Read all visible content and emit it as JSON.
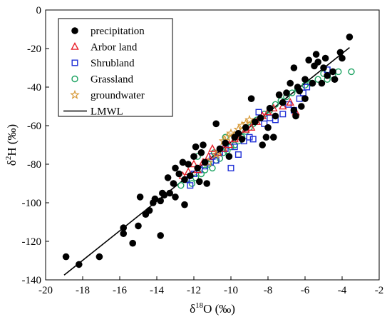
{
  "chart_data": {
    "type": "scatter",
    "title": "",
    "xlabel": "δ18O (‰)",
    "xlabel_parts": {
      "base": "δ",
      "sup": "18",
      "rest": "O (‰)"
    },
    "ylabel": "δ2H (‰)",
    "ylabel_parts": {
      "base": "δ",
      "sup": "2",
      "rest": "H (‰)"
    },
    "xlim": [
      -20,
      -2
    ],
    "ylim": [
      -140,
      0
    ],
    "xticks": [
      -20,
      -18,
      -16,
      -14,
      -12,
      -10,
      -8,
      -6,
      -4,
      -2
    ],
    "xtick_labels": [
      "-20",
      "-18",
      "-16",
      "-14",
      "-12",
      "-10",
      "-8",
      "-6",
      "-4",
      "-2"
    ],
    "yticks": [
      -140,
      -120,
      -100,
      -80,
      -60,
      -40,
      -20,
      0
    ],
    "ytick_labels": [
      "-140",
      "-120",
      "-100",
      "-80",
      "-60",
      "-40",
      "-20",
      "0"
    ],
    "grid": false,
    "legend_position": "top-left",
    "series": [
      {
        "name": "precipitation",
        "marker": "filled-circle",
        "color": "#000000",
        "points": [
          [
            -18.9,
            -128
          ],
          [
            -18.2,
            -132
          ],
          [
            -17.1,
            -128
          ],
          [
            -15.8,
            -113
          ],
          [
            -15.8,
            -116
          ],
          [
            -15.3,
            -121
          ],
          [
            -15.0,
            -112
          ],
          [
            -14.9,
            -97
          ],
          [
            -14.6,
            -106
          ],
          [
            -14.4,
            -104
          ],
          [
            -14.2,
            -100
          ],
          [
            -14.1,
            -98
          ],
          [
            -13.8,
            -117
          ],
          [
            -13.8,
            -99
          ],
          [
            -13.7,
            -95
          ],
          [
            -13.6,
            -96
          ],
          [
            -13.4,
            -87
          ],
          [
            -13.3,
            -95
          ],
          [
            -13.1,
            -90
          ],
          [
            -13.0,
            -82
          ],
          [
            -13.0,
            -97
          ],
          [
            -12.8,
            -85
          ],
          [
            -12.6,
            -79
          ],
          [
            -12.5,
            -88
          ],
          [
            -12.5,
            -101
          ],
          [
            -12.3,
            -80
          ],
          [
            -12.2,
            -86
          ],
          [
            -12.0,
            -76
          ],
          [
            -11.9,
            -71
          ],
          [
            -11.8,
            -82
          ],
          [
            -11.7,
            -89
          ],
          [
            -11.6,
            -74
          ],
          [
            -11.5,
            -70
          ],
          [
            -11.4,
            -79
          ],
          [
            -11.3,
            -90
          ],
          [
            -10.8,
            -59
          ],
          [
            -10.6,
            -72
          ],
          [
            -10.3,
            -69
          ],
          [
            -10.1,
            -76
          ],
          [
            -9.8,
            -66
          ],
          [
            -9.6,
            -64
          ],
          [
            -9.4,
            -67
          ],
          [
            -9.2,
            -61
          ],
          [
            -8.9,
            -46
          ],
          [
            -8.7,
            -58
          ],
          [
            -8.4,
            -56
          ],
          [
            -8.3,
            -70
          ],
          [
            -8.1,
            -66
          ],
          [
            -8.0,
            -61
          ],
          [
            -7.9,
            -51
          ],
          [
            -7.7,
            -66
          ],
          [
            -7.6,
            -55
          ],
          [
            -7.4,
            -44
          ],
          [
            -7.2,
            -48
          ],
          [
            -7.0,
            -43
          ],
          [
            -6.8,
            -38
          ],
          [
            -6.6,
            -52
          ],
          [
            -6.5,
            -55
          ],
          [
            -6.4,
            -40
          ],
          [
            -6.3,
            -42
          ],
          [
            -6.2,
            -50
          ],
          [
            -6.0,
            -46
          ],
          [
            -6.0,
            -36
          ],
          [
            -5.8,
            -26
          ],
          [
            -5.6,
            -38
          ],
          [
            -5.5,
            -29
          ],
          [
            -5.4,
            -23
          ],
          [
            -5.3,
            -27
          ],
          [
            -5.1,
            -38
          ],
          [
            -5.0,
            -30
          ],
          [
            -4.9,
            -25
          ],
          [
            -4.8,
            -34
          ],
          [
            -4.5,
            -32
          ],
          [
            -4.4,
            -36
          ],
          [
            -4.1,
            -22
          ],
          [
            -4.0,
            -25
          ],
          [
            -3.6,
            -14
          ],
          [
            -6.6,
            -30
          ]
        ]
      },
      {
        "name": "Arbor land",
        "marker": "open-triangle",
        "color": "#e8202a",
        "points": [
          [
            -12.6,
            -86
          ],
          [
            -12.3,
            -84
          ],
          [
            -12.0,
            -80
          ],
          [
            -11.8,
            -83
          ],
          [
            -11.5,
            -79
          ],
          [
            -11.2,
            -76
          ],
          [
            -11.0,
            -72
          ],
          [
            -10.7,
            -74
          ],
          [
            -10.4,
            -72
          ],
          [
            -10.1,
            -70
          ],
          [
            -9.8,
            -67
          ],
          [
            -9.5,
            -66
          ],
          [
            -9.2,
            -62
          ],
          [
            -8.9,
            -61
          ],
          [
            -8.6,
            -58
          ],
          [
            -8.3,
            -55
          ],
          [
            -8.0,
            -53
          ],
          [
            -7.7,
            -51
          ],
          [
            -7.2,
            -50
          ],
          [
            -6.8,
            -48
          ],
          [
            -6.5,
            -53
          ]
        ]
      },
      {
        "name": "Shrubland",
        "marker": "open-square",
        "color": "#1f2fd6",
        "points": [
          [
            -12.4,
            -88
          ],
          [
            -12.2,
            -91
          ],
          [
            -12.0,
            -85
          ],
          [
            -11.7,
            -83
          ],
          [
            -11.4,
            -81
          ],
          [
            -11.1,
            -79
          ],
          [
            -11.0,
            -76
          ],
          [
            -10.8,
            -78
          ],
          [
            -10.6,
            -74
          ],
          [
            -10.3,
            -72
          ],
          [
            -10.0,
            -82
          ],
          [
            -9.8,
            -71
          ],
          [
            -9.6,
            -75
          ],
          [
            -9.3,
            -68
          ],
          [
            -9.0,
            -66
          ],
          [
            -8.8,
            -67
          ],
          [
            -8.5,
            -53
          ],
          [
            -8.2,
            -59
          ],
          [
            -7.9,
            -56
          ],
          [
            -7.6,
            -57
          ],
          [
            -7.2,
            -54
          ],
          [
            -6.9,
            -49
          ],
          [
            -6.6,
            -52
          ],
          [
            -6.3,
            -46
          ],
          [
            -6.1,
            -43
          ],
          [
            -5.9,
            -40
          ],
          [
            -4.8,
            -31
          ]
        ]
      },
      {
        "name": "Grassland",
        "marker": "open-circle",
        "color": "#1aa260",
        "points": [
          [
            -12.7,
            -91
          ],
          [
            -12.4,
            -88
          ],
          [
            -12.1,
            -90
          ],
          [
            -11.9,
            -87
          ],
          [
            -11.6,
            -85
          ],
          [
            -11.4,
            -83
          ],
          [
            -11.2,
            -80
          ],
          [
            -11.0,
            -82
          ],
          [
            -10.8,
            -78
          ],
          [
            -10.6,
            -77
          ],
          [
            -10.4,
            -74
          ],
          [
            -10.2,
            -73
          ],
          [
            -10.0,
            -71
          ],
          [
            -9.8,
            -70
          ],
          [
            -9.6,
            -68
          ],
          [
            -9.4,
            -66
          ],
          [
            -9.2,
            -63
          ],
          [
            -9.0,
            -61
          ],
          [
            -8.8,
            -59
          ],
          [
            -8.6,
            -57
          ],
          [
            -8.4,
            -56
          ],
          [
            -8.2,
            -54
          ],
          [
            -7.9,
            -52
          ],
          [
            -7.6,
            -49
          ],
          [
            -7.3,
            -47
          ],
          [
            -7.0,
            -45
          ],
          [
            -6.7,
            -43
          ],
          [
            -6.4,
            -41
          ],
          [
            -6.0,
            -39
          ],
          [
            -5.7,
            -38
          ],
          [
            -5.3,
            -36
          ],
          [
            -5.0,
            -33
          ],
          [
            -4.8,
            -36
          ],
          [
            -4.5,
            -34
          ],
          [
            -4.2,
            -32
          ],
          [
            -3.5,
            -32
          ],
          [
            -11.8,
            -76
          ],
          [
            -10.9,
            -74
          ],
          [
            -10.3,
            -66
          ]
        ]
      },
      {
        "name": "groundwater",
        "marker": "open-star",
        "color": "#d89b3a",
        "points": [
          [
            -10.4,
            -68
          ],
          [
            -10.2,
            -66
          ],
          [
            -10.0,
            -64
          ],
          [
            -9.8,
            -65
          ],
          [
            -9.6,
            -62
          ],
          [
            -9.4,
            -60
          ],
          [
            -9.2,
            -59
          ],
          [
            -9.0,
            -57
          ],
          [
            -11.2,
            -79
          ],
          [
            -10.8,
            -75
          ]
        ]
      },
      {
        "name": "LMWL",
        "marker": "line",
        "color": "#000000",
        "points": [
          [
            -19.0,
            -137.5
          ],
          [
            -3.6,
            -19.5
          ]
        ]
      }
    ]
  }
}
